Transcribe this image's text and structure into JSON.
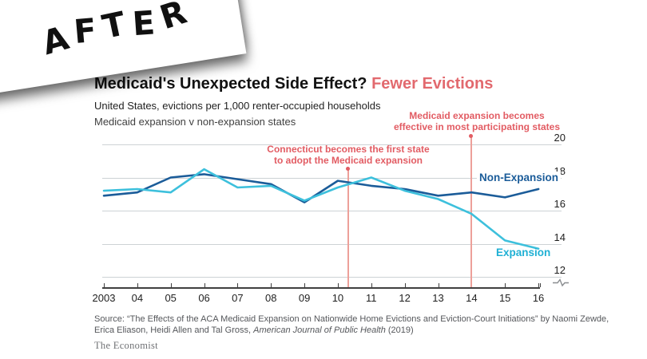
{
  "banner": {
    "label": "AFTER"
  },
  "header": {
    "title_black": "Medicaid's Unexpected Side Effect? ",
    "title_red": "Fewer Evictions",
    "subtitle1": "United States, evictions per 1,000 renter-occupied households",
    "subtitle2": "Medicaid expansion v non-expansion states"
  },
  "colors": {
    "title_accent": "#e2696e",
    "annotation_red": "#e25c63",
    "event_line_red": "#eda09a",
    "non_expansion_blue": "#1b5c99",
    "expansion_cyan": "#3dc0dc",
    "gridline_gray": "#cdd2d5"
  },
  "chart_data": {
    "type": "line",
    "title": "Medicaid's Unexpected Side Effect? Fewer Evictions",
    "subtitle": "United States, evictions per 1,000 renter-occupied households",
    "comparison": "Medicaid expansion v non-expansion states",
    "x_tick_labels": [
      "2003",
      "04",
      "05",
      "06",
      "07",
      "08",
      "09",
      "10",
      "11",
      "12",
      "13",
      "14",
      "15",
      "16"
    ],
    "x_years": [
      2003,
      2004,
      2005,
      2006,
      2007,
      2008,
      2009,
      2010,
      2011,
      2012,
      2013,
      2014,
      2015,
      2016
    ],
    "series": [
      {
        "name": "Non-Expansion",
        "color": "#1b5c99",
        "values": [
          16.9,
          17.1,
          18.0,
          18.2,
          17.9,
          17.6,
          16.5,
          17.8,
          17.5,
          17.3,
          16.9,
          17.1,
          16.8,
          17.3
        ]
      },
      {
        "name": "Expansion",
        "color": "#3dc0dc",
        "values": [
          17.2,
          17.3,
          17.1,
          18.5,
          17.4,
          17.5,
          16.6,
          17.4,
          18.0,
          17.2,
          16.7,
          15.8,
          14.2,
          13.7
        ]
      }
    ],
    "yticks": [
      12,
      14,
      16,
      18,
      20
    ],
    "ylim": [
      12,
      20
    ],
    "axis_break": true,
    "grid": "horizontal",
    "legend_position": "inline-labels",
    "annotations": [
      {
        "line1": "Connecticut becomes the first state",
        "line2": "to adopt the Medicaid expansion",
        "x_year": 2010.3
      },
      {
        "line1": "Medicaid expansion becomes",
        "line2": "effective in most participating states",
        "x_year": 2014
      }
    ]
  },
  "source": {
    "line1": "Source: “The Effects of the ACA Medicaid Expansion on Nationwide Home Evictions and Eviction-Court Initiations” by Naomi Zewde,",
    "line2_pre": "Erica Eliason, Heidi Allen and Tal Gross, ",
    "line2_italic": "American Journal of Public Health",
    "line2_post": " (2019)"
  },
  "footer": {
    "brand": "The Economist"
  }
}
